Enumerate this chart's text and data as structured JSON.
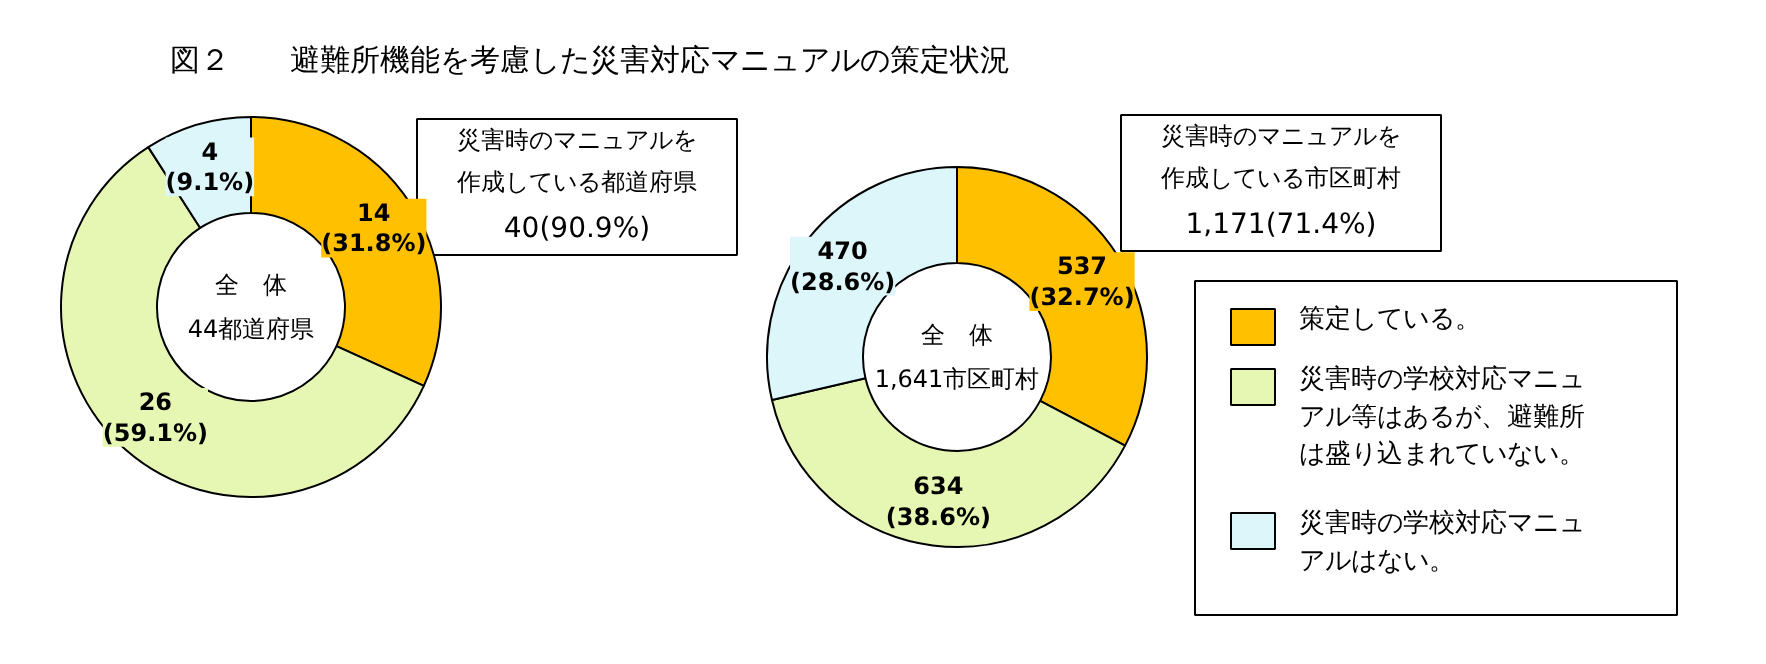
{
  "chart_data": [
    {
      "type": "donut",
      "title": "図２　　避難所機能を考慮した災害対応マニュアルの策定状況",
      "categories": [
        null,
        null,
        null
      ],
      "values": [
        14,
        26,
        4
      ],
      "colors": [
        "#ffc000",
        "#e6f7b4",
        "#dcf6fa"
      ],
      "value_labels": [
        "14\n(31.8%)",
        "26\n(59.1%)",
        "4\n(9.1%)"
      ],
      "annotations": [
        "全　体",
        "44都道府県",
        "災害時のマニュアルを作成している都道府県",
        "40(90.9%)"
      ]
    },
    {
      "type": "donut",
      "categories": [
        "策定している。",
        "災害時の学校対応マニュアル等はあるが、避難所は盛り込まれていない。",
        "災害時の学校対応マニュアルはない。"
      ],
      "values": [
        537,
        634,
        470
      ],
      "colors": [
        "#ffc000",
        "#e6f7b4",
        "#dcf6fa"
      ],
      "value_labels": [
        "537\n(32.7%)",
        "634\n(38.6%)",
        "470\n(28.6%)"
      ],
      "annotations": [
        "全　体",
        "1,641市区町村",
        "災害時のマニュアルを作成している市区町村",
        "1,171(71.4%)"
      ],
      "legend": "right"
    }
  ]
}
